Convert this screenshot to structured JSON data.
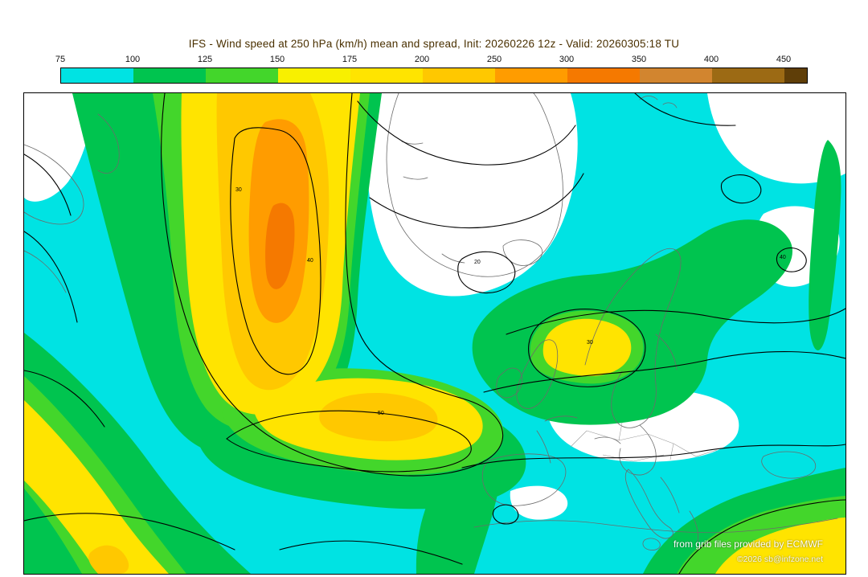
{
  "title": "IFS - Wind speed at 250 hPa (km/h) mean and spread, Init: 20260226 12z - Valid: 20260305:18 TU",
  "colorbar": {
    "tick_labels": [
      "75",
      "100",
      "125",
      "150",
      "175",
      "200",
      "250",
      "300",
      "350",
      "400",
      "450"
    ],
    "segment_colors": [
      "#00E3E3",
      "#00C44F",
      "#43D62B",
      "#F8F000",
      "#FFE400",
      "#FFC800",
      "#FF9C00",
      "#F57900",
      "#D2852F",
      "#9C6A14"
    ],
    "overflow_color": "#5F3E08"
  },
  "map": {
    "credit_line1": "from grib files provided by ECMWF",
    "credit_line2": "©2026 sb@infzone.net",
    "contour_labels": [
      "40",
      "30",
      "50",
      "30",
      "20",
      "40"
    ],
    "palette": {
      "cyan": "#00E3E3",
      "green": "#00C44F",
      "green2": "#43D62B",
      "yellow": "#FFE400",
      "amber": "#FFC800",
      "orange": "#FF9C00",
      "orange2": "#F57900",
      "white": "#FFFFFF",
      "coast": "#6b6b6b",
      "contour": "#000000"
    }
  },
  "chart_data": {
    "type": "heatmap",
    "title": "IFS - Wind speed at 250 hPa (km/h) mean and spread, Init: 20260226 12z - Valid: 20260305:18 TU",
    "units": "km/h",
    "colorbar_ticks": [
      75,
      100,
      125,
      150,
      175,
      200,
      250,
      300,
      350,
      400,
      450
    ],
    "colorbar_colors": [
      "#00E3E3",
      "#00C44F",
      "#43D62B",
      "#F8F000",
      "#FFE400",
      "#FFC800",
      "#FF9C00",
      "#F57900",
      "#D2852F",
      "#9C6A14",
      "#5F3E08"
    ],
    "legend_position": "top"
  }
}
